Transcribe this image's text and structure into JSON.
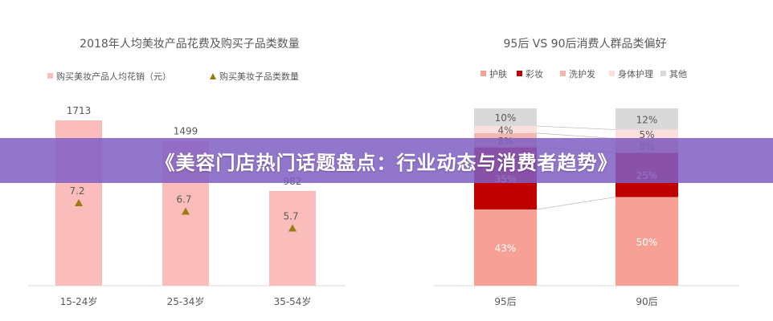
{
  "banner": {
    "title": "《美容门店热门话题盘点：行业动态与消费者趋势》"
  },
  "chart_data": [
    {
      "type": "bar",
      "title": "2018年人均美妆产品花费及购买子品类数量",
      "legend": [
        "购买美妆产品人均花销（元）",
        "购买美妆子品类数量"
      ],
      "legend_position": "top",
      "categories": [
        "15-24岁",
        "25-34岁",
        "35-54岁"
      ],
      "series": [
        {
          "name": "购买美妆产品人均花销（元）",
          "type": "bar",
          "values": [
            1713,
            1499,
            982
          ],
          "color": "#fbbcbc"
        },
        {
          "name": "购买美妆子品类数量",
          "type": "scatter",
          "marker": "triangle",
          "values": [
            7.2,
            6.7,
            5.7
          ],
          "color": "#9a7b10"
        }
      ],
      "grid": false
    },
    {
      "type": "bar",
      "stacked": true,
      "percent": true,
      "title": "95后 VS 90后消费人群品类偏好",
      "legend_position": "top",
      "categories": [
        "95后",
        "90后"
      ],
      "series": [
        {
          "name": "护肤",
          "values": [
            43,
            50
          ],
          "color": "#f7a196"
        },
        {
          "name": "彩妆",
          "values": [
            35,
            25
          ],
          "color": "#c00000"
        },
        {
          "name": "洗护发",
          "values": [
            8,
            8
          ],
          "color": "#f2b8b0"
        },
        {
          "name": "身体护理",
          "values": [
            4,
            5
          ],
          "color": "#fbdede"
        },
        {
          "name": "其他",
          "values": [
            10,
            12
          ],
          "color": "#d9d9d9"
        }
      ],
      "grid": false
    }
  ]
}
